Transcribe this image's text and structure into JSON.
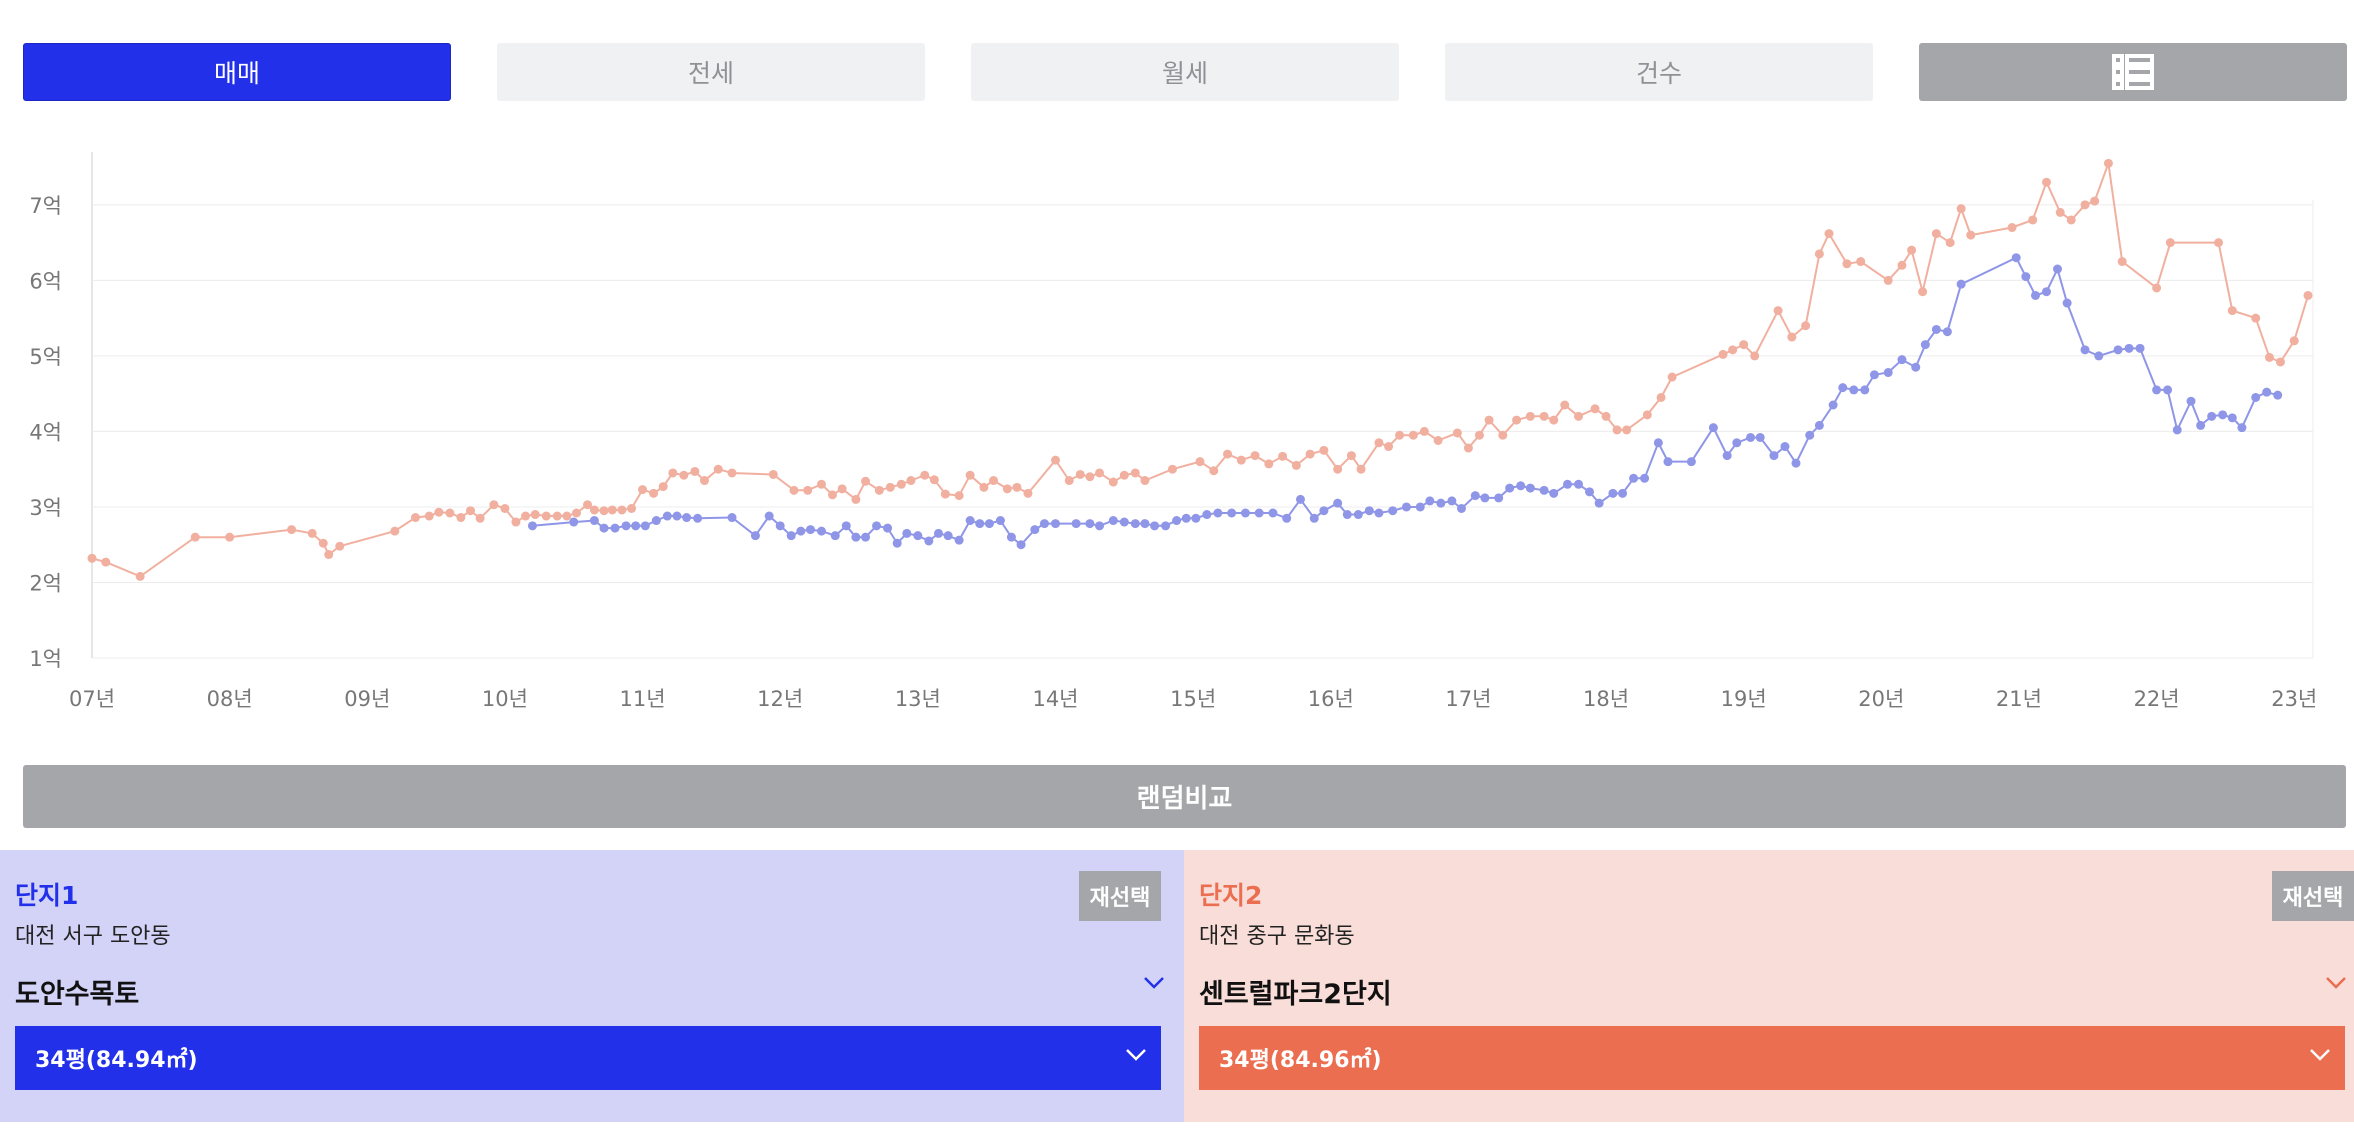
{
  "tabs": [
    {
      "label": "매매",
      "active": true
    },
    {
      "label": "전세",
      "active": false
    },
    {
      "label": "월세",
      "active": false
    },
    {
      "label": "건수",
      "active": false
    }
  ],
  "list_view_icon": "list-view-icon",
  "chart_data": {
    "type": "line",
    "y_ticks": [
      "1억",
      "2억",
      "3억",
      "4억",
      "5억",
      "6억",
      "7억"
    ],
    "x_ticks": [
      "07년",
      "08년",
      "09년",
      "10년",
      "11년",
      "12년",
      "13년",
      "14년",
      "15년",
      "16년",
      "17년",
      "18년",
      "19년",
      "20년",
      "21년",
      "22년",
      "23년"
    ],
    "ylim": [
      1,
      7.7
    ],
    "xlim": [
      2007,
      2023.1
    ],
    "series": [
      {
        "color": "#f1b09f",
        "points": [
          [
            2007.0,
            2.32
          ],
          [
            2007.1,
            2.27
          ],
          [
            2007.35,
            2.08
          ],
          [
            2007.75,
            2.6
          ],
          [
            2008.0,
            2.6
          ],
          [
            2008.45,
            2.7
          ],
          [
            2008.6,
            2.65
          ],
          [
            2008.68,
            2.52
          ],
          [
            2008.72,
            2.37
          ],
          [
            2008.8,
            2.48
          ],
          [
            2009.2,
            2.68
          ],
          [
            2009.35,
            2.86
          ],
          [
            2009.45,
            2.88
          ],
          [
            2009.52,
            2.93
          ],
          [
            2009.6,
            2.92
          ],
          [
            2009.68,
            2.86
          ],
          [
            2009.75,
            2.95
          ],
          [
            2009.82,
            2.85
          ],
          [
            2009.92,
            3.03
          ],
          [
            2010.0,
            2.98
          ],
          [
            2010.08,
            2.8
          ],
          [
            2010.15,
            2.88
          ],
          [
            2010.22,
            2.9
          ],
          [
            2010.3,
            2.88
          ],
          [
            2010.38,
            2.88
          ],
          [
            2010.45,
            2.88
          ],
          [
            2010.52,
            2.92
          ],
          [
            2010.6,
            3.03
          ],
          [
            2010.65,
            2.96
          ],
          [
            2010.72,
            2.95
          ],
          [
            2010.78,
            2.96
          ],
          [
            2010.85,
            2.96
          ],
          [
            2010.92,
            2.98
          ],
          [
            2011.0,
            3.23
          ],
          [
            2011.08,
            3.18
          ],
          [
            2011.15,
            3.27
          ],
          [
            2011.22,
            3.45
          ],
          [
            2011.3,
            3.42
          ],
          [
            2011.38,
            3.47
          ],
          [
            2011.45,
            3.35
          ],
          [
            2011.55,
            3.5
          ],
          [
            2011.65,
            3.45
          ],
          [
            2011.95,
            3.43
          ],
          [
            2012.1,
            3.22
          ],
          [
            2012.2,
            3.22
          ],
          [
            2012.3,
            3.3
          ],
          [
            2012.38,
            3.16
          ],
          [
            2012.45,
            3.24
          ],
          [
            2012.55,
            3.1
          ],
          [
            2012.62,
            3.34
          ],
          [
            2012.72,
            3.22
          ],
          [
            2012.8,
            3.26
          ],
          [
            2012.88,
            3.3
          ],
          [
            2012.95,
            3.35
          ],
          [
            2013.05,
            3.42
          ],
          [
            2013.12,
            3.36
          ],
          [
            2013.2,
            3.17
          ],
          [
            2013.3,
            3.15
          ],
          [
            2013.38,
            3.42
          ],
          [
            2013.48,
            3.26
          ],
          [
            2013.55,
            3.35
          ],
          [
            2013.65,
            3.24
          ],
          [
            2013.72,
            3.26
          ],
          [
            2013.8,
            3.18
          ],
          [
            2014.0,
            3.62
          ],
          [
            2014.1,
            3.35
          ],
          [
            2014.18,
            3.43
          ],
          [
            2014.25,
            3.4
          ],
          [
            2014.32,
            3.45
          ],
          [
            2014.42,
            3.33
          ],
          [
            2014.5,
            3.42
          ],
          [
            2014.58,
            3.45
          ],
          [
            2014.65,
            3.35
          ],
          [
            2014.85,
            3.5
          ],
          [
            2015.05,
            3.6
          ],
          [
            2015.15,
            3.48
          ],
          [
            2015.25,
            3.7
          ],
          [
            2015.35,
            3.62
          ],
          [
            2015.45,
            3.68
          ],
          [
            2015.55,
            3.57
          ],
          [
            2015.65,
            3.67
          ],
          [
            2015.75,
            3.55
          ],
          [
            2015.85,
            3.7
          ],
          [
            2015.95,
            3.75
          ],
          [
            2016.05,
            3.5
          ],
          [
            2016.15,
            3.68
          ],
          [
            2016.22,
            3.5
          ],
          [
            2016.35,
            3.85
          ],
          [
            2016.42,
            3.8
          ],
          [
            2016.5,
            3.95
          ],
          [
            2016.6,
            3.95
          ],
          [
            2016.68,
            4.0
          ],
          [
            2016.78,
            3.88
          ],
          [
            2016.92,
            3.98
          ],
          [
            2017.0,
            3.78
          ],
          [
            2017.08,
            3.95
          ],
          [
            2017.15,
            4.15
          ],
          [
            2017.25,
            3.95
          ],
          [
            2017.35,
            4.15
          ],
          [
            2017.45,
            4.2
          ],
          [
            2017.55,
            4.2
          ],
          [
            2017.62,
            4.15
          ],
          [
            2017.7,
            4.35
          ],
          [
            2017.8,
            4.2
          ],
          [
            2017.92,
            4.3
          ],
          [
            2018.0,
            4.2
          ],
          [
            2018.08,
            4.02
          ],
          [
            2018.15,
            4.02
          ],
          [
            2018.3,
            4.22
          ],
          [
            2018.4,
            4.45
          ],
          [
            2018.48,
            4.72
          ],
          [
            2018.85,
            5.02
          ],
          [
            2018.92,
            5.08
          ],
          [
            2019.0,
            5.15
          ],
          [
            2019.08,
            5.0
          ],
          [
            2019.25,
            5.6
          ],
          [
            2019.35,
            5.25
          ],
          [
            2019.45,
            5.4
          ],
          [
            2019.55,
            6.35
          ],
          [
            2019.62,
            6.62
          ],
          [
            2019.75,
            6.22
          ],
          [
            2019.85,
            6.25
          ],
          [
            2020.05,
            6.0
          ],
          [
            2020.15,
            6.2
          ],
          [
            2020.22,
            6.4
          ],
          [
            2020.3,
            5.85
          ],
          [
            2020.4,
            6.62
          ],
          [
            2020.5,
            6.5
          ],
          [
            2020.58,
            6.95
          ],
          [
            2020.65,
            6.6
          ],
          [
            2020.95,
            6.7
          ],
          [
            2021.1,
            6.8
          ],
          [
            2021.2,
            7.3
          ],
          [
            2021.3,
            6.9
          ],
          [
            2021.38,
            6.8
          ],
          [
            2021.48,
            7.0
          ],
          [
            2021.55,
            7.05
          ],
          [
            2021.65,
            7.55
          ],
          [
            2021.75,
            6.25
          ],
          [
            2022.0,
            5.9
          ],
          [
            2022.1,
            6.5
          ],
          [
            2022.45,
            6.5
          ],
          [
            2022.55,
            5.6
          ],
          [
            2022.72,
            5.5
          ],
          [
            2022.82,
            4.98
          ],
          [
            2022.9,
            4.92
          ],
          [
            2023.0,
            5.2
          ],
          [
            2023.1,
            5.8
          ]
        ]
      },
      {
        "color": "#8f96e7",
        "points": [
          [
            2010.2,
            2.75
          ],
          [
            2010.5,
            2.8
          ],
          [
            2010.65,
            2.82
          ],
          [
            2010.72,
            2.72
          ],
          [
            2010.8,
            2.72
          ],
          [
            2010.88,
            2.75
          ],
          [
            2010.95,
            2.75
          ],
          [
            2011.02,
            2.75
          ],
          [
            2011.1,
            2.82
          ],
          [
            2011.18,
            2.88
          ],
          [
            2011.25,
            2.88
          ],
          [
            2011.32,
            2.86
          ],
          [
            2011.4,
            2.85
          ],
          [
            2011.65,
            2.86
          ],
          [
            2011.82,
            2.62
          ],
          [
            2011.92,
            2.88
          ],
          [
            2012.0,
            2.75
          ],
          [
            2012.08,
            2.62
          ],
          [
            2012.15,
            2.68
          ],
          [
            2012.22,
            2.7
          ],
          [
            2012.3,
            2.68
          ],
          [
            2012.4,
            2.62
          ],
          [
            2012.48,
            2.75
          ],
          [
            2012.55,
            2.6
          ],
          [
            2012.62,
            2.6
          ],
          [
            2012.7,
            2.75
          ],
          [
            2012.78,
            2.72
          ],
          [
            2012.85,
            2.52
          ],
          [
            2012.92,
            2.65
          ],
          [
            2013.0,
            2.62
          ],
          [
            2013.08,
            2.55
          ],
          [
            2013.15,
            2.65
          ],
          [
            2013.22,
            2.62
          ],
          [
            2013.3,
            2.56
          ],
          [
            2013.38,
            2.82
          ],
          [
            2013.45,
            2.78
          ],
          [
            2013.52,
            2.78
          ],
          [
            2013.6,
            2.82
          ],
          [
            2013.68,
            2.6
          ],
          [
            2013.75,
            2.5
          ],
          [
            2013.85,
            2.7
          ],
          [
            2013.92,
            2.78
          ],
          [
            2014.0,
            2.78
          ],
          [
            2014.15,
            2.78
          ],
          [
            2014.25,
            2.78
          ],
          [
            2014.32,
            2.75
          ],
          [
            2014.42,
            2.82
          ],
          [
            2014.5,
            2.8
          ],
          [
            2014.58,
            2.78
          ],
          [
            2014.65,
            2.78
          ],
          [
            2014.72,
            2.75
          ],
          [
            2014.8,
            2.75
          ],
          [
            2014.88,
            2.82
          ],
          [
            2014.95,
            2.85
          ],
          [
            2015.02,
            2.85
          ],
          [
            2015.1,
            2.9
          ],
          [
            2015.18,
            2.92
          ],
          [
            2015.28,
            2.92
          ],
          [
            2015.38,
            2.92
          ],
          [
            2015.48,
            2.92
          ],
          [
            2015.58,
            2.92
          ],
          [
            2015.68,
            2.85
          ],
          [
            2015.78,
            3.1
          ],
          [
            2015.88,
            2.85
          ],
          [
            2015.95,
            2.95
          ],
          [
            2016.05,
            3.05
          ],
          [
            2016.12,
            2.9
          ],
          [
            2016.2,
            2.9
          ],
          [
            2016.28,
            2.95
          ],
          [
            2016.35,
            2.92
          ],
          [
            2016.45,
            2.95
          ],
          [
            2016.55,
            3.0
          ],
          [
            2016.65,
            3.0
          ],
          [
            2016.72,
            3.08
          ],
          [
            2016.8,
            3.05
          ],
          [
            2016.88,
            3.08
          ],
          [
            2016.95,
            2.98
          ],
          [
            2017.05,
            3.15
          ],
          [
            2017.12,
            3.12
          ],
          [
            2017.22,
            3.12
          ],
          [
            2017.3,
            3.25
          ],
          [
            2017.38,
            3.28
          ],
          [
            2017.45,
            3.25
          ],
          [
            2017.55,
            3.22
          ],
          [
            2017.62,
            3.18
          ],
          [
            2017.72,
            3.3
          ],
          [
            2017.8,
            3.3
          ],
          [
            2017.88,
            3.2
          ],
          [
            2017.95,
            3.05
          ],
          [
            2018.05,
            3.18
          ],
          [
            2018.12,
            3.18
          ],
          [
            2018.2,
            3.38
          ],
          [
            2018.28,
            3.38
          ],
          [
            2018.38,
            3.85
          ],
          [
            2018.45,
            3.6
          ],
          [
            2018.62,
            3.6
          ],
          [
            2018.78,
            4.05
          ],
          [
            2018.88,
            3.68
          ],
          [
            2018.95,
            3.85
          ],
          [
            2019.05,
            3.92
          ],
          [
            2019.12,
            3.92
          ],
          [
            2019.22,
            3.68
          ],
          [
            2019.3,
            3.8
          ],
          [
            2019.38,
            3.58
          ],
          [
            2019.48,
            3.95
          ],
          [
            2019.55,
            4.08
          ],
          [
            2019.65,
            4.35
          ],
          [
            2019.72,
            4.58
          ],
          [
            2019.8,
            4.55
          ],
          [
            2019.88,
            4.55
          ],
          [
            2019.95,
            4.75
          ],
          [
            2020.05,
            4.78
          ],
          [
            2020.15,
            4.95
          ],
          [
            2020.25,
            4.85
          ],
          [
            2020.32,
            5.15
          ],
          [
            2020.4,
            5.35
          ],
          [
            2020.48,
            5.32
          ],
          [
            2020.58,
            5.95
          ],
          [
            2020.98,
            6.3
          ],
          [
            2021.05,
            6.05
          ],
          [
            2021.12,
            5.8
          ],
          [
            2021.2,
            5.85
          ],
          [
            2021.28,
            6.15
          ],
          [
            2021.35,
            5.7
          ],
          [
            2021.48,
            5.08
          ],
          [
            2021.58,
            5.0
          ],
          [
            2021.72,
            5.08
          ],
          [
            2021.8,
            5.1
          ],
          [
            2021.88,
            5.1
          ],
          [
            2022.0,
            4.55
          ],
          [
            2022.08,
            4.55
          ],
          [
            2022.15,
            4.02
          ],
          [
            2022.25,
            4.4
          ],
          [
            2022.32,
            4.08
          ],
          [
            2022.4,
            4.2
          ],
          [
            2022.48,
            4.22
          ],
          [
            2022.55,
            4.18
          ],
          [
            2022.62,
            4.05
          ],
          [
            2022.72,
            4.45
          ],
          [
            2022.8,
            4.52
          ],
          [
            2022.88,
            4.48
          ]
        ]
      }
    ]
  },
  "random_compare": "랜덤비교",
  "complex1": {
    "title": "단지1",
    "address": "대전 서구 도안동",
    "reselect": "재선택",
    "name": "도안수목토",
    "size": "34평(84.94㎡)",
    "color": "#2230ea"
  },
  "complex2": {
    "title": "단지2",
    "address": "대전 중구 문화동",
    "reselect": "재선택",
    "name": "센트럴파크2단지",
    "size": "34평(84.96㎡)",
    "color": "#ec6e50"
  }
}
